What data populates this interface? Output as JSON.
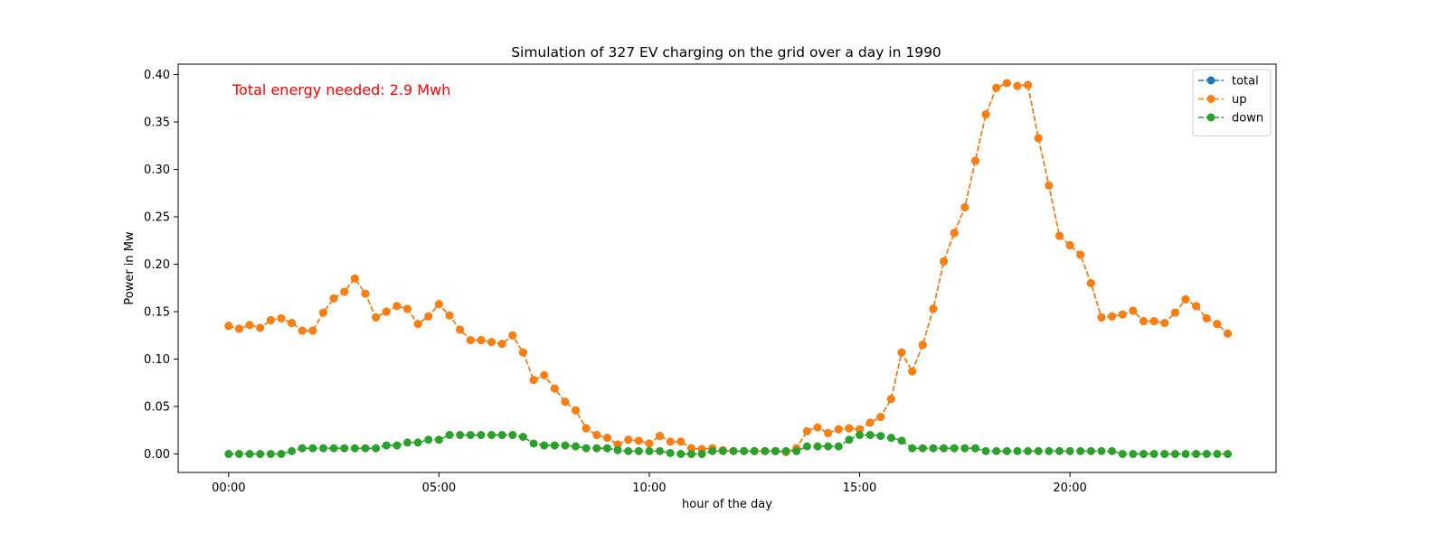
{
  "chart_data": {
    "type": "line",
    "title": "Simulation of 327 EV charging on the grid over a day in 1990",
    "xlabel": "hour of the day",
    "ylabel": "Power in Mw",
    "annotation": {
      "text": "Total energy needed: 2.9 Mwh",
      "color": "#ff0000"
    },
    "x_unit": "hours",
    "x_ticks": [
      0,
      5,
      10,
      15,
      20
    ],
    "x_tick_labels": [
      "00:00",
      "05:00",
      "10:00",
      "15:00",
      "20:00"
    ],
    "xlim": [
      -1.2,
      24.9
    ],
    "y_ticks": [
      0.0,
      0.05,
      0.1,
      0.15,
      0.2,
      0.25,
      0.3,
      0.35,
      0.4
    ],
    "y_tick_labels": [
      "0.00",
      "0.05",
      "0.10",
      "0.15",
      "0.20",
      "0.25",
      "0.30",
      "0.35",
      "0.40"
    ],
    "ylim": [
      -0.0195,
      0.411
    ],
    "grid": false,
    "legend_position": "top-right",
    "x": [
      0,
      0.25,
      0.5,
      0.75,
      1,
      1.25,
      1.5,
      1.75,
      2,
      2.25,
      2.5,
      2.75,
      3,
      3.25,
      3.5,
      3.75,
      4,
      4.25,
      4.5,
      4.75,
      5,
      5.25,
      5.5,
      5.75,
      6,
      6.25,
      6.5,
      6.75,
      7,
      7.25,
      7.5,
      7.75,
      8,
      8.25,
      8.5,
      8.75,
      9,
      9.25,
      9.5,
      9.75,
      10,
      10.25,
      10.5,
      10.75,
      11,
      11.25,
      11.5,
      11.75,
      12,
      12.25,
      12.5,
      12.75,
      13,
      13.25,
      13.5,
      13.75,
      14,
      14.25,
      14.5,
      14.75,
      15,
      15.25,
      15.5,
      15.75,
      16,
      16.25,
      16.5,
      16.75,
      17,
      17.25,
      17.5,
      17.75,
      18,
      18.25,
      18.5,
      18.75,
      19,
      19.25,
      19.5,
      19.75,
      20,
      20.25,
      20.5,
      20.75,
      21,
      21.25,
      21.5,
      21.75,
      22,
      22.25,
      22.5,
      22.75,
      23,
      23.25,
      23.5,
      23.75
    ],
    "series": [
      {
        "name": "total",
        "color": "#1f77b4",
        "values": [
          0.135,
          0.132,
          0.136,
          0.133,
          0.141,
          0.143,
          0.138,
          0.13,
          0.13,
          0.149,
          0.164,
          0.171,
          0.185,
          0.169,
          0.144,
          0.15,
          0.156,
          0.153,
          0.137,
          0.145,
          0.158,
          0.146,
          0.131,
          0.12,
          0.12,
          0.118,
          0.116,
          0.125,
          0.107,
          0.078,
          0.083,
          0.069,
          0.055,
          0.046,
          0.027,
          0.02,
          0.017,
          0.01,
          0.015,
          0.014,
          0.011,
          0.019,
          0.013,
          0.013,
          0.006,
          0.005,
          0.006,
          0.004,
          0.003,
          0.003,
          0.003,
          0.003,
          0.003,
          0.002,
          0.006,
          0.024,
          0.028,
          0.022,
          0.026,
          0.027,
          0.026,
          0.033,
          0.039,
          0.058,
          0.107,
          0.087,
          0.115,
          0.153,
          0.203,
          0.233,
          0.26,
          0.309,
          0.358,
          0.386,
          0.391,
          0.388,
          0.389,
          0.333,
          0.283,
          0.23,
          0.22,
          0.21,
          0.18,
          0.144,
          0.145,
          0.147,
          0.151,
          0.14,
          0.14,
          0.138,
          0.149,
          0.163,
          0.156,
          0.143,
          0.137,
          0.127
        ]
      },
      {
        "name": "up",
        "color": "#ff7f0e",
        "values": [
          0.135,
          0.132,
          0.136,
          0.133,
          0.141,
          0.143,
          0.138,
          0.13,
          0.13,
          0.149,
          0.164,
          0.171,
          0.185,
          0.169,
          0.144,
          0.15,
          0.156,
          0.153,
          0.137,
          0.145,
          0.158,
          0.146,
          0.131,
          0.12,
          0.12,
          0.118,
          0.116,
          0.125,
          0.107,
          0.078,
          0.083,
          0.069,
          0.055,
          0.046,
          0.027,
          0.02,
          0.017,
          0.01,
          0.015,
          0.014,
          0.011,
          0.019,
          0.013,
          0.013,
          0.006,
          0.005,
          0.006,
          0.004,
          0.003,
          0.003,
          0.003,
          0.003,
          0.003,
          0.002,
          0.006,
          0.024,
          0.028,
          0.022,
          0.026,
          0.027,
          0.026,
          0.033,
          0.039,
          0.058,
          0.107,
          0.087,
          0.115,
          0.153,
          0.203,
          0.233,
          0.26,
          0.309,
          0.358,
          0.386,
          0.391,
          0.388,
          0.389,
          0.333,
          0.283,
          0.23,
          0.22,
          0.21,
          0.18,
          0.144,
          0.145,
          0.147,
          0.151,
          0.14,
          0.14,
          0.138,
          0.149,
          0.163,
          0.156,
          0.143,
          0.137,
          0.127
        ]
      },
      {
        "name": "down",
        "color": "#2ca02c",
        "values": [
          0.0,
          0.0,
          0.0,
          0.0,
          0.0,
          0.0,
          0.003,
          0.006,
          0.006,
          0.006,
          0.006,
          0.006,
          0.006,
          0.006,
          0.006,
          0.009,
          0.009,
          0.012,
          0.012,
          0.015,
          0.015,
          0.02,
          0.02,
          0.02,
          0.02,
          0.02,
          0.02,
          0.02,
          0.018,
          0.011,
          0.009,
          0.009,
          0.009,
          0.008,
          0.006,
          0.006,
          0.006,
          0.004,
          0.003,
          0.003,
          0.003,
          0.003,
          0.001,
          0.0,
          0.0,
          0.0,
          0.003,
          0.003,
          0.003,
          0.003,
          0.003,
          0.003,
          0.003,
          0.003,
          0.003,
          0.008,
          0.008,
          0.008,
          0.008,
          0.015,
          0.02,
          0.02,
          0.019,
          0.017,
          0.014,
          0.006,
          0.006,
          0.006,
          0.006,
          0.006,
          0.006,
          0.006,
          0.003,
          0.003,
          0.003,
          0.003,
          0.003,
          0.003,
          0.003,
          0.003,
          0.003,
          0.003,
          0.003,
          0.003,
          0.003,
          0.0,
          0.0,
          0.0,
          0.0,
          0.0,
          0.0,
          0.0,
          0.0,
          0.0,
          0.0,
          0.0
        ]
      }
    ]
  }
}
